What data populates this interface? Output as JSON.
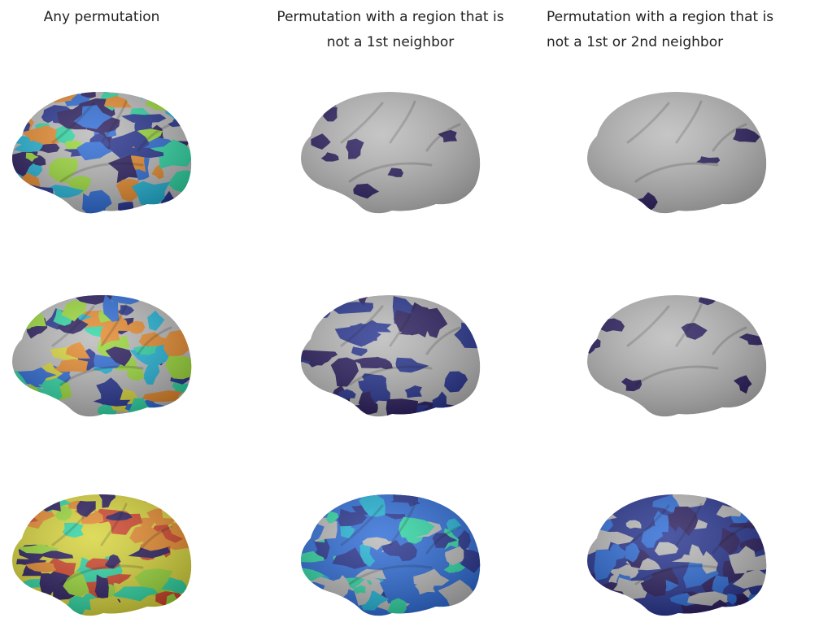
{
  "columns": [
    {
      "title_line1": "Any permutation",
      "title_line2": ""
    },
    {
      "title_line1": "Permutation with a region that is",
      "title_line2": "not a 1st neighbor"
    },
    {
      "title_line1": "Permutation with a region that is",
      "title_line2": "not a 1st or 2nd neighbor"
    }
  ],
  "colors": {
    "gray": "#b9b9b9",
    "dark": "#2a1d5e",
    "navy": "#27348f",
    "blue": "#2d6bd6",
    "cyan": "#22b3d6",
    "teal": "#2fd6a4",
    "green": "#9bd93a",
    "yellow": "#d7d43a",
    "orange": "#e58a2d",
    "red": "#d0452a"
  }
}
